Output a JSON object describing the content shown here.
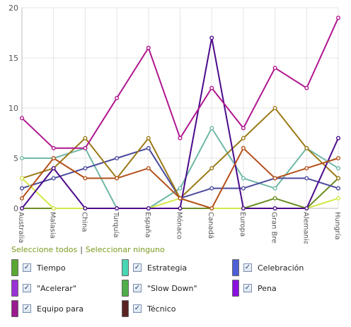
{
  "chart_data": {
    "type": "line",
    "categories": [
      "Australia",
      "Malasia",
      "China",
      "Turquía",
      "España",
      "Mónaco",
      "Canadá",
      "Europa",
      "Gran Bretaña",
      "Alemania",
      "Hungría"
    ],
    "ylim": [
      0,
      20
    ],
    "yticks": [
      0,
      5,
      10,
      15,
      20
    ],
    "grid": true,
    "series": [
      {
        "name": "Tiempo",
        "color": "#6b8e23",
        "values": [
          0,
          0,
          0,
          0,
          0,
          0,
          0,
          0,
          1,
          0,
          3
        ]
      },
      {
        "name": "Estrategia",
        "color": "#6fb8a6",
        "values": [
          5,
          5,
          6,
          0,
          0,
          2,
          8,
          3,
          2,
          6,
          4
        ]
      },
      {
        "name": "Celebración",
        "color": "#4b4a9e",
        "values": [
          2,
          3,
          4,
          5,
          6,
          1,
          2,
          2,
          3,
          3,
          2
        ]
      },
      {
        "name": "\"Acelerar\"",
        "color": "#9c7a18",
        "values": [
          3,
          4,
          7,
          3,
          7,
          1,
          4,
          7,
          10,
          6,
          3
        ]
      },
      {
        "name": "\"Slow Down\"",
        "color": "#d4e84a",
        "values": [
          3,
          0,
          0,
          0,
          0,
          1,
          0,
          0,
          0,
          0,
          1
        ]
      },
      {
        "name": "Pena",
        "color": "#4b0a8c",
        "values": [
          0,
          4,
          0,
          0,
          0,
          0,
          17,
          0,
          0,
          0,
          7
        ]
      },
      {
        "name": "Equipo para",
        "color": "#b0178f",
        "values": [
          9,
          6,
          6,
          11,
          16,
          7,
          12,
          8,
          14,
          12,
          19
        ]
      },
      {
        "name": "Técnico",
        "color": "#b4501a",
        "values": [
          1,
          5,
          3,
          3,
          4,
          1,
          0,
          6,
          3,
          4,
          5
        ]
      }
    ]
  },
  "controls": {
    "select_all": "Seleccione todos",
    "separator": "|",
    "select_none": "Seleccionar ninguno"
  },
  "legend": [
    {
      "label": "Tiempo",
      "swatch": "#5aa832",
      "checked": true
    },
    {
      "label": "Estrategia",
      "swatch": "#48d6b4",
      "checked": true
    },
    {
      "label": "Celebración",
      "swatch": "#4f5fd6",
      "checked": true
    },
    {
      "label": "\"Acelerar\"",
      "swatch": "#9a32d6",
      "checked": true
    },
    {
      "label": "\"Slow Down\"",
      "swatch": "#4fae4a",
      "checked": true
    },
    {
      "label": "Pena",
      "swatch": "#8a10e0",
      "checked": true
    },
    {
      "label": "Equipo para",
      "swatch": "#9b1a8e",
      "checked": true
    },
    {
      "label": "Técnico",
      "swatch": "#5a2323",
      "checked": true
    }
  ]
}
